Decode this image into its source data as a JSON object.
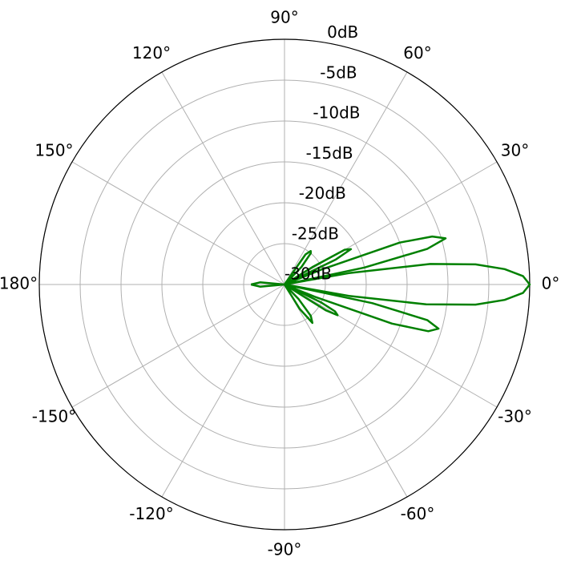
{
  "chart_data": {
    "type": "polar",
    "theta": [
      -180,
      -175,
      -170,
      -60,
      -58,
      -54,
      -50,
      -46,
      -40,
      -34,
      -32,
      -30,
      -28,
      -26,
      -24,
      -22,
      -20,
      -18,
      -16,
      -14,
      -12,
      -11,
      -10,
      -8,
      -6,
      -4,
      -2,
      0,
      2,
      4,
      6,
      8,
      10,
      11,
      12,
      14,
      16,
      18,
      20,
      22,
      24,
      26,
      28,
      30,
      32,
      34,
      40,
      46,
      50,
      52,
      55,
      60,
      170,
      175,
      180
    ],
    "values": [
      -25.9,
      -27,
      -30,
      -30,
      -26.5,
      -24.2,
      -25,
      -27.5,
      -30,
      -30,
      -24,
      -22.5,
      -23,
      -25,
      -30,
      -26,
      -16,
      -11.5,
      -10.4,
      -12,
      -19,
      -30,
      -22,
      -12.5,
      -6.5,
      -3,
      -0.8,
      0,
      -0.8,
      -3,
      -6.5,
      -12,
      -22,
      -30,
      -20,
      -12,
      -9.5,
      -11,
      -15,
      -25,
      -30,
      -23,
      -20.8,
      -21.5,
      -26,
      -30,
      -30,
      -27,
      -25,
      -24.8,
      -25.5,
      -30,
      -30,
      -27,
      -25.9
    ],
    "color": "#008000",
    "rlim": [
      -30,
      0
    ],
    "rticks": [
      {
        "value": -30,
        "label": "-30dB"
      },
      {
        "value": -25,
        "label": "-25dB"
      },
      {
        "value": -20,
        "label": "-20dB"
      },
      {
        "value": -15,
        "label": "-15dB"
      },
      {
        "value": -10,
        "label": "-10dB"
      },
      {
        "value": -5,
        "label": "-5dB"
      },
      {
        "value": 0,
        "label": "0dB"
      }
    ],
    "thetaticks": [
      {
        "value": 0,
        "label": "0°"
      },
      {
        "value": 30,
        "label": "30°"
      },
      {
        "value": 60,
        "label": "60°"
      },
      {
        "value": 90,
        "label": "90°"
      },
      {
        "value": 120,
        "label": "120°"
      },
      {
        "value": 150,
        "label": "150°"
      },
      {
        "value": 180,
        "label": "180°"
      },
      {
        "value": -150,
        "label": "-150°"
      },
      {
        "value": -120,
        "label": "-120°"
      },
      {
        "value": -90,
        "label": "-90°"
      },
      {
        "value": -60,
        "label": "-60°"
      },
      {
        "value": -30,
        "label": "-30°"
      }
    ],
    "grid": true
  }
}
